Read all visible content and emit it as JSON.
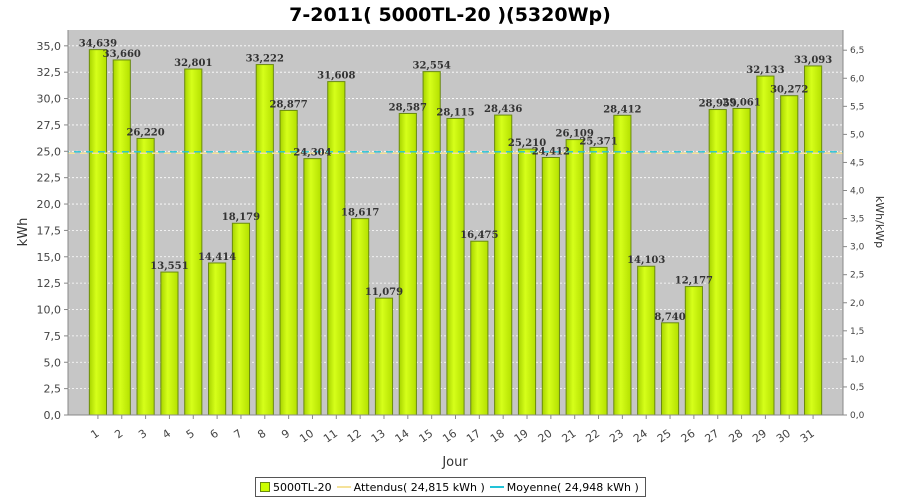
{
  "chart_data": {
    "type": "bar",
    "title": "7-2011( 5000TL-20 )(5320Wp)",
    "xlabel": "Jour",
    "ylabel": "kWh",
    "y2label": "kWh/kWp",
    "ylim": [
      0,
      36.5
    ],
    "y2lim": [
      0,
      6.86
    ],
    "yticks": [
      "0,0",
      "2,5",
      "5,0",
      "7,5",
      "10,0",
      "12,5",
      "15,0",
      "17,5",
      "20,0",
      "22,5",
      "25,0",
      "27,5",
      "30,0",
      "32,5",
      "35,0"
    ],
    "y2ticks": [
      "0,0",
      "0,5",
      "1,0",
      "1,5",
      "2,0",
      "2,5",
      "3,0",
      "3,5",
      "4,0",
      "4,5",
      "5,0",
      "5,5",
      "6,0",
      "6,5"
    ],
    "categories": [
      "1",
      "2",
      "3",
      "4",
      "5",
      "6",
      "7",
      "8",
      "9",
      "10",
      "11",
      "12",
      "13",
      "14",
      "15",
      "16",
      "17",
      "18",
      "19",
      "20",
      "21",
      "22",
      "23",
      "24",
      "25",
      "26",
      "27",
      "28",
      "29",
      "30",
      "31"
    ],
    "series": [
      {
        "name": "5000TL-20",
        "values": [
          34.639,
          33.66,
          26.22,
          13.551,
          32.801,
          14.414,
          18.179,
          33.222,
          28.877,
          24.304,
          31.608,
          18.617,
          11.079,
          28.587,
          32.554,
          28.115,
          16.475,
          28.436,
          25.21,
          24.412,
          26.109,
          25.371,
          28.412,
          14.103,
          8.74,
          12.177,
          28.959,
          29.061,
          32.133,
          30.272,
          33.093
        ],
        "labels": [
          "34,639",
          "33,660",
          "26,220",
          "13,551",
          "32,801",
          "14,414",
          "18,179",
          "33,222",
          "28,877",
          "24,304",
          "31,608",
          "18,617",
          "11,079",
          "28,587",
          "32,554",
          "28,115",
          "16,475",
          "28,436",
          "25,210",
          "24,412",
          "26,109",
          "25,371",
          "28,412",
          "14,103",
          "8,740",
          "12,177",
          "28,959",
          "29,061",
          "32,133",
          "30,272",
          "33,093"
        ]
      }
    ],
    "reference_lines": [
      {
        "name": "Attendus",
        "value": 24.815
      },
      {
        "name": "Moyenne",
        "value": 24.948
      }
    ],
    "grid": true,
    "legend_position": "bottom"
  },
  "legend": {
    "bar_label": "5000TL-20",
    "expected_label": "Attendus( 24,815 kWh )",
    "average_label": "Moyenne( 24,948 kWh )"
  },
  "colors": {
    "bar": "#ccff00",
    "bar_edge": "#6a8a10",
    "plot_bg": "#c6c6c6",
    "expected_line": "#f5e29a",
    "average_line": "#22c3d8"
  }
}
